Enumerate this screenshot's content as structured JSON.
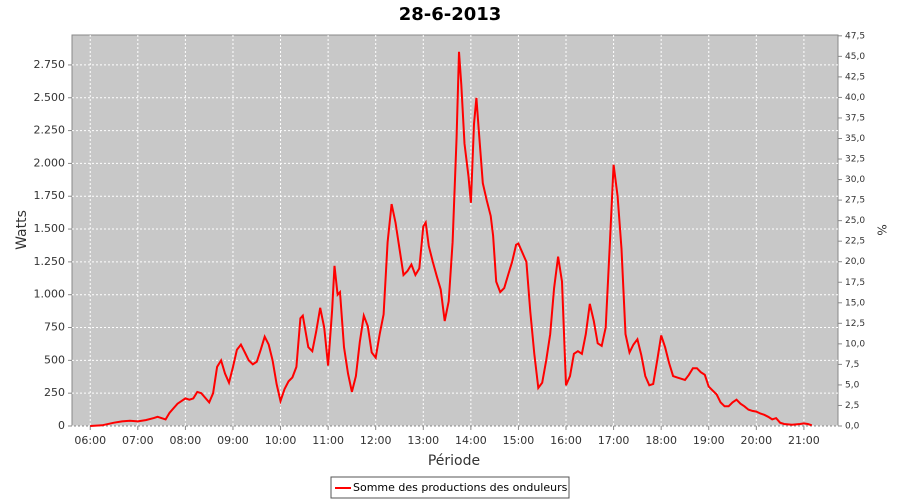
{
  "chart_data": {
    "type": "line",
    "title": "28-6-2013",
    "xlabel": "Période",
    "ylabel": "Watts",
    "y2label": "%",
    "x": [
      "06:00",
      "06:15",
      "06:30",
      "06:40",
      "06:50",
      "07:00",
      "07:10",
      "07:20",
      "07:25",
      "07:35",
      "07:40",
      "07:50",
      "08:00",
      "08:05",
      "08:10",
      "08:15",
      "08:20",
      "08:30",
      "08:35",
      "08:40",
      "08:45",
      "08:50",
      "08:55",
      "09:00",
      "09:05",
      "09:10",
      "09:15",
      "09:20",
      "09:25",
      "09:30",
      "09:35",
      "09:40",
      "09:45",
      "09:50",
      "09:55",
      "10:00",
      "10:05",
      "10:10",
      "10:15",
      "10:20",
      "10:25",
      "10:28",
      "10:35",
      "10:40",
      "10:45",
      "10:50",
      "10:55",
      "11:00",
      "11:05",
      "11:08",
      "11:12",
      "11:15",
      "11:20",
      "11:25",
      "11:30",
      "11:35",
      "11:40",
      "11:45",
      "11:50",
      "11:55",
      "12:00",
      "12:05",
      "12:10",
      "12:15",
      "12:20",
      "12:25",
      "12:30",
      "12:35",
      "12:40",
      "12:45",
      "12:50",
      "12:55",
      "13:00",
      "13:03",
      "13:07",
      "13:12",
      "13:17",
      "13:22",
      "13:27",
      "13:32",
      "13:37",
      "13:42",
      "13:45",
      "13:48",
      "13:52",
      "13:57",
      "14:00",
      "14:04",
      "14:07",
      "14:10",
      "14:15",
      "14:20",
      "14:25",
      "14:28",
      "14:32",
      "14:37",
      "14:42",
      "14:47",
      "14:52",
      "14:57",
      "15:00",
      "15:05",
      "15:10",
      "15:15",
      "15:20",
      "15:25",
      "15:30",
      "15:35",
      "15:40",
      "15:45",
      "15:50",
      "15:55",
      "16:00",
      "16:05",
      "16:10",
      "16:15",
      "16:20",
      "16:25",
      "16:30",
      "16:35",
      "16:40",
      "16:45",
      "16:50",
      "16:55",
      "17:00",
      "17:05",
      "17:10",
      "17:15",
      "17:20",
      "17:25",
      "17:30",
      "17:35",
      "17:40",
      "17:45",
      "17:50",
      "17:55",
      "18:00",
      "18:05",
      "18:10",
      "18:15",
      "18:20",
      "18:25",
      "18:30",
      "18:35",
      "18:40",
      "18:45",
      "18:50",
      "18:55",
      "19:00",
      "19:05",
      "19:10",
      "19:15",
      "19:20",
      "19:25",
      "19:30",
      "19:35",
      "19:40",
      "19:45",
      "19:50",
      "19:55",
      "20:00",
      "20:05",
      "20:10",
      "20:15",
      "20:20",
      "20:25",
      "20:30",
      "20:35",
      "20:45",
      "20:55",
      "21:00",
      "21:05",
      "21:10"
    ],
    "series": [
      {
        "name": "Somme des productions des onduleurs",
        "color": "#ff0000",
        "values": [
          0,
          5,
          25,
          35,
          40,
          35,
          45,
          60,
          70,
          50,
          100,
          170,
          210,
          200,
          210,
          260,
          250,
          180,
          250,
          450,
          500,
          400,
          330,
          450,
          580,
          620,
          560,
          500,
          470,
          490,
          580,
          680,
          620,
          500,
          320,
          190,
          280,
          340,
          370,
          450,
          820,
          840,
          600,
          570,
          720,
          900,
          750,
          460,
          880,
          1220,
          1000,
          1020,
          600,
          400,
          260,
          380,
          640,
          840,
          760,
          560,
          520,
          700,
          850,
          1400,
          1690,
          1550,
          1350,
          1150,
          1180,
          1230,
          1150,
          1200,
          1520,
          1550,
          1370,
          1250,
          1140,
          1040,
          800,
          950,
          1400,
          2200,
          2850,
          2600,
          2150,
          1900,
          1700,
          2300,
          2500,
          2250,
          1850,
          1720,
          1600,
          1450,
          1100,
          1020,
          1050,
          1150,
          1250,
          1380,
          1390,
          1320,
          1250,
          870,
          550,
          290,
          330,
          500,
          700,
          1050,
          1290,
          1100,
          310,
          380,
          550,
          570,
          550,
          700,
          930,
          800,
          630,
          610,
          750,
          1350,
          1990,
          1750,
          1350,
          700,
          560,
          620,
          660,
          540,
          380,
          310,
          320,
          500,
          690,
          600,
          480,
          380,
          370,
          360,
          350,
          390,
          440,
          440,
          410,
          390,
          300,
          270,
          240,
          180,
          150,
          150,
          180,
          200,
          170,
          150,
          125,
          115,
          110,
          95,
          85,
          70,
          50,
          60,
          25,
          15,
          10,
          15,
          20,
          15,
          5
        ]
      }
    ],
    "xlim": [
      "05:37",
      "21:43"
    ],
    "xticks": [
      "06:00",
      "07:00",
      "08:00",
      "09:00",
      "10:00",
      "11:00",
      "12:00",
      "13:00",
      "14:00",
      "15:00",
      "16:00",
      "17:00",
      "18:00",
      "19:00",
      "20:00",
      "21:00"
    ],
    "ylim": [
      0,
      2978
    ],
    "yticks": [
      0,
      250,
      500,
      750,
      {
        "value": 1000,
        "label": "1.000"
      },
      {
        "value": 1250,
        "label": "1.250"
      },
      {
        "value": 1500,
        "label": "1.500"
      },
      {
        "value": 1750,
        "label": "1.750"
      },
      {
        "value": 2000,
        "label": "2.000"
      },
      {
        "value": 2250,
        "label": "2.250"
      },
      {
        "value": 2500,
        "label": "2.500"
      },
      {
        "value": 2750,
        "label": "2.750"
      }
    ],
    "y2lim": [
      0,
      47.6
    ],
    "y2ticks": [
      {
        "value": 0,
        "label": "0,0"
      },
      {
        "value": 2.5,
        "label": "2,5"
      },
      {
        "value": 5,
        "label": "5,0"
      },
      {
        "value": 7.5,
        "label": "7,5"
      },
      {
        "value": 10,
        "label": "10,0"
      },
      {
        "value": 12.5,
        "label": "12,5"
      },
      {
        "value": 15,
        "label": "15,0"
      },
      {
        "value": 17.5,
        "label": "17,5"
      },
      {
        "value": 20,
        "label": "20,0"
      },
      {
        "value": 22.5,
        "label": "22,5"
      },
      {
        "value": 25,
        "label": "25,0"
      },
      {
        "value": 27.5,
        "label": "27,5"
      },
      {
        "value": 30,
        "label": "30,0"
      },
      {
        "value": 32.5,
        "label": "32,5"
      },
      {
        "value": 35,
        "label": "35,0"
      },
      {
        "value": 37.5,
        "label": "37,5"
      },
      {
        "value": 40,
        "label": "40,0"
      },
      {
        "value": 42.5,
        "label": "42,5"
      },
      {
        "value": 45,
        "label": "45,0"
      },
      {
        "value": 47.5,
        "label": "47,5"
      }
    ],
    "grid": true,
    "legend": "bottom"
  }
}
